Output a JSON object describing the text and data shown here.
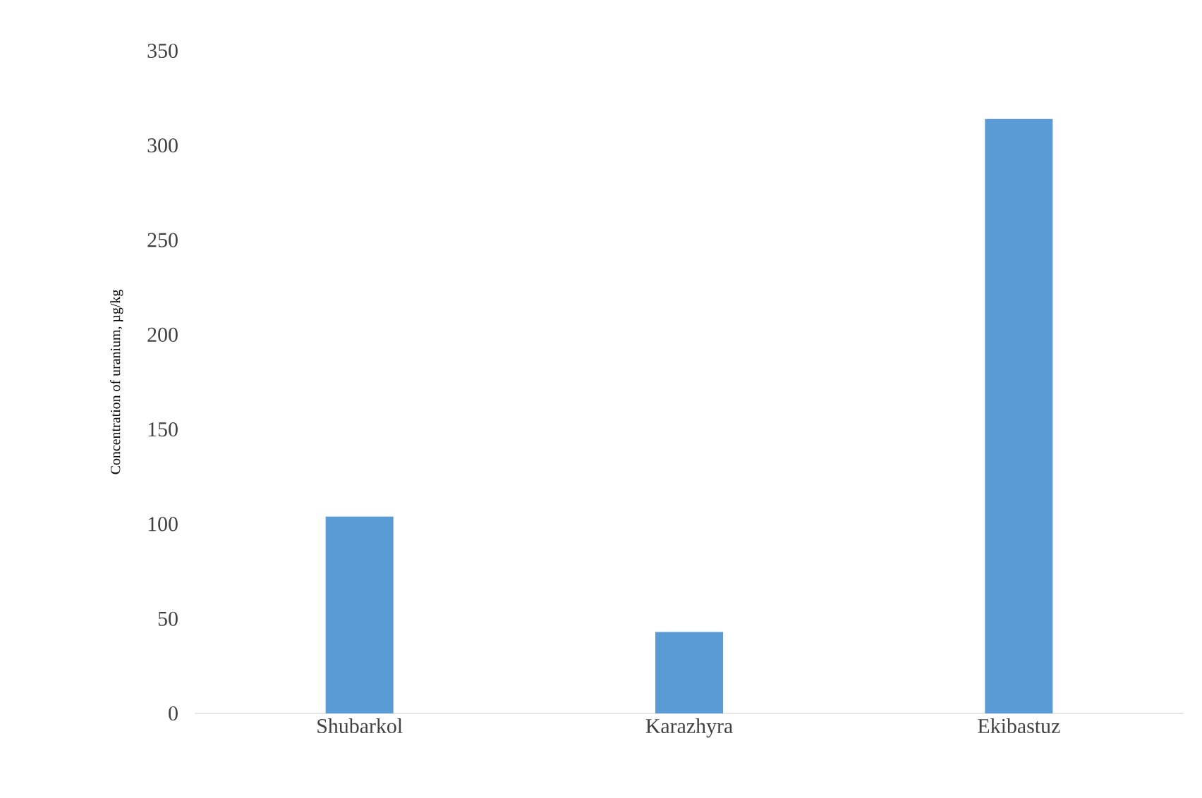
{
  "chart_data": {
    "type": "bar",
    "ylabel": "Concentration of uranium, µg/kg",
    "categories": [
      "Shubarkol",
      "Karazhyra",
      "Ekibastuz"
    ],
    "values": [
      104,
      43,
      314
    ],
    "color": "#5b9bd5",
    "ylim": [
      0,
      350
    ],
    "yticks": [
      0,
      50,
      100,
      150,
      200,
      250,
      300,
      350
    ]
  }
}
